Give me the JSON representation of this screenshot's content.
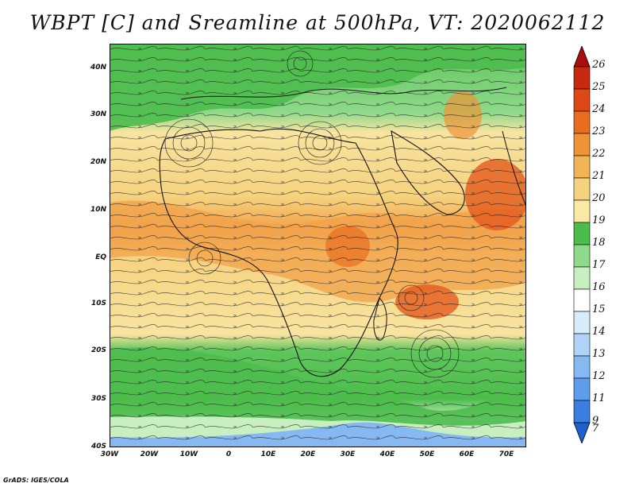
{
  "title": "WBPT [C] and Sreamline at 500hPa, VT: 2020062112",
  "footer": "GrADS: IGES/COLA",
  "latitude_labels": [
    "40N",
    "30N",
    "20N",
    "10N",
    "EQ",
    "10S",
    "20S",
    "30S",
    "40S"
  ],
  "longitude_labels": [
    "30W",
    "20W",
    "10W",
    "0",
    "10E",
    "20E",
    "30E",
    "40E",
    "50E",
    "60E",
    "70E"
  ],
  "colorbar": {
    "labels": [
      "7",
      "9",
      "11",
      "12",
      "13",
      "14",
      "15",
      "16",
      "17",
      "18",
      "19",
      "20",
      "21",
      "22",
      "23",
      "24",
      "25",
      "26"
    ],
    "colors": [
      "#1f5fd0",
      "#3a7fe0",
      "#5e9cec",
      "#86b8f2",
      "#b0d3f7",
      "#d8ecfb",
      "#ffffff",
      "#c8efc0",
      "#8ed98a",
      "#4cbd4c",
      "#fbe9a6",
      "#f6d27e",
      "#f2b556",
      "#ee9436",
      "#e86d1f",
      "#dd4814",
      "#c62910",
      "#a80e0a"
    ]
  },
  "colors": {
    "warm_band": "#f2a24a",
    "hot_core": "#e35a1e",
    "green_belt": "#4cbd4c",
    "ocean_blue": "#9cc6ee"
  }
}
